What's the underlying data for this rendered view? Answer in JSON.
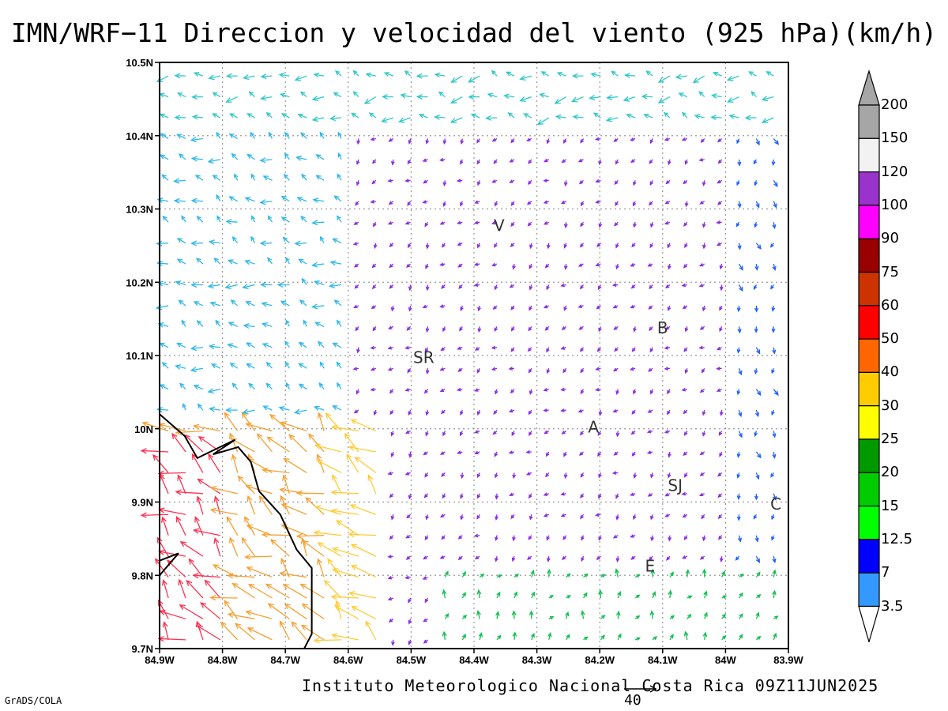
{
  "title": "IMN/WRF−11 Direccion y velocidad del viento (925 hPa)(km/h)",
  "footer": "Instituto Meteorologico Nacional Costa Rica 09Z11JUN2025",
  "software": "GrADS/COLA",
  "reference_vector": {
    "value": "40",
    "speed": 40
  },
  "axes": {
    "lon_range": [
      -84.9,
      -83.9
    ],
    "lat_range": [
      9.7,
      10.5
    ],
    "lon_ticks": [
      {
        "value": -84.9,
        "label": "84.9W"
      },
      {
        "value": -84.8,
        "label": "84.8W"
      },
      {
        "value": -84.7,
        "label": "84.7W"
      },
      {
        "value": -84.6,
        "label": "84.6W"
      },
      {
        "value": -84.5,
        "label": "84.5W"
      },
      {
        "value": -84.4,
        "label": "84.4W"
      },
      {
        "value": -84.3,
        "label": "84.3W"
      },
      {
        "value": -84.2,
        "label": "84.2W"
      },
      {
        "value": -84.1,
        "label": "84.1W"
      },
      {
        "value": -84.0,
        "label": "84W"
      },
      {
        "value": -83.9,
        "label": "83.9W"
      }
    ],
    "lat_ticks": [
      {
        "value": 10.5,
        "label": "10.5N"
      },
      {
        "value": 10.4,
        "label": "10.4N"
      },
      {
        "value": 10.3,
        "label": "10.3N"
      },
      {
        "value": 10.2,
        "label": "10.2N"
      },
      {
        "value": 10.1,
        "label": "10.1N"
      },
      {
        "value": 10.0,
        "label": "10N"
      },
      {
        "value": 9.9,
        "label": "9.9N"
      },
      {
        "value": 9.8,
        "label": "9.8N"
      },
      {
        "value": 9.7,
        "label": "9.7N"
      }
    ],
    "grid": true
  },
  "colorbar": {
    "levels": [
      "3.5",
      "7",
      "12.5",
      "15",
      "20",
      "25",
      "30",
      "40",
      "50",
      "60",
      "75",
      "90",
      "100",
      "120",
      "150",
      "200"
    ],
    "colors": [
      "#66ffff",
      "#3399ff",
      "#0000ff",
      "#00ff00",
      "#00cc00",
      "#009900",
      "#ffff00",
      "#ffcc00",
      "#ff6600",
      "#ff0000",
      "#cc3300",
      "#990000",
      "#ff00ff",
      "#9933cc",
      "#f2f2f2",
      "#a6a6a6"
    ],
    "upper_arrow_color": "#a6a6a6",
    "lower_arrow_color": "#ffffff"
  },
  "places": [
    {
      "label": "V",
      "lon": -84.36,
      "lat": 10.27
    },
    {
      "label": "SR",
      "lon": -84.48,
      "lat": 10.09
    },
    {
      "label": "B",
      "lon": -84.1,
      "lat": 10.13
    },
    {
      "label": "A",
      "lon": -84.21,
      "lat": 9.995
    },
    {
      "label": "SJ",
      "lon": -84.08,
      "lat": 9.915
    },
    {
      "label": "C",
      "lon": -83.92,
      "lat": 9.89
    },
    {
      "label": "E",
      "lon": -84.12,
      "lat": 9.805
    }
  ],
  "coastline": [
    [
      -84.9,
      10.02
    ],
    [
      -84.86,
      9.99
    ],
    [
      -84.84,
      9.96
    ],
    [
      -84.78,
      9.985
    ],
    [
      -84.815,
      9.965
    ],
    [
      -84.775,
      9.975
    ],
    [
      -84.755,
      9.955
    ],
    [
      -84.742,
      9.915
    ],
    [
      -84.708,
      9.883
    ],
    [
      -84.682,
      9.835
    ],
    [
      -84.658,
      9.81
    ],
    [
      -84.658,
      9.72
    ],
    [
      -84.67,
      9.7
    ]
  ],
  "coastline2": [
    [
      -84.9,
      9.8
    ],
    [
      -84.87,
      9.83
    ],
    [
      -84.9,
      9.82
    ]
  ],
  "wind_regions": [
    {
      "name": "southwest-strong",
      "lon": [
        -84.9,
        -84.55
      ],
      "lat": [
        9.7,
        10.0
      ],
      "u": -30,
      "v": 22,
      "color": "#f5a030"
    },
    {
      "name": "north-easterly-band",
      "lon": [
        -84.9,
        -83.9
      ],
      "lat": [
        10.42,
        10.5
      ],
      "u": -14,
      "v": 2,
      "color": "#30c8c8"
    },
    {
      "name": "western-easterlies",
      "lon": [
        -84.9,
        -84.6
      ],
      "lat": [
        10.0,
        10.42
      ],
      "u": -12,
      "v": 6,
      "color": "#30b8e8"
    },
    {
      "name": "interior-light",
      "lon": [
        -84.55,
        -83.9
      ],
      "lat": [
        9.8,
        10.42
      ],
      "u": -4,
      "v": -4,
      "color": "#8a2be2"
    },
    {
      "name": "eastern-southerlies",
      "lon": [
        -84.0,
        -83.9
      ],
      "lat": [
        9.7,
        10.45
      ],
      "u": 0,
      "v": -8,
      "color": "#2060ff"
    },
    {
      "name": "southern-band",
      "lon": [
        -84.45,
        -83.9
      ],
      "lat": [
        9.7,
        9.8
      ],
      "u": 4,
      "v": 8,
      "color": "#10c050"
    }
  ]
}
